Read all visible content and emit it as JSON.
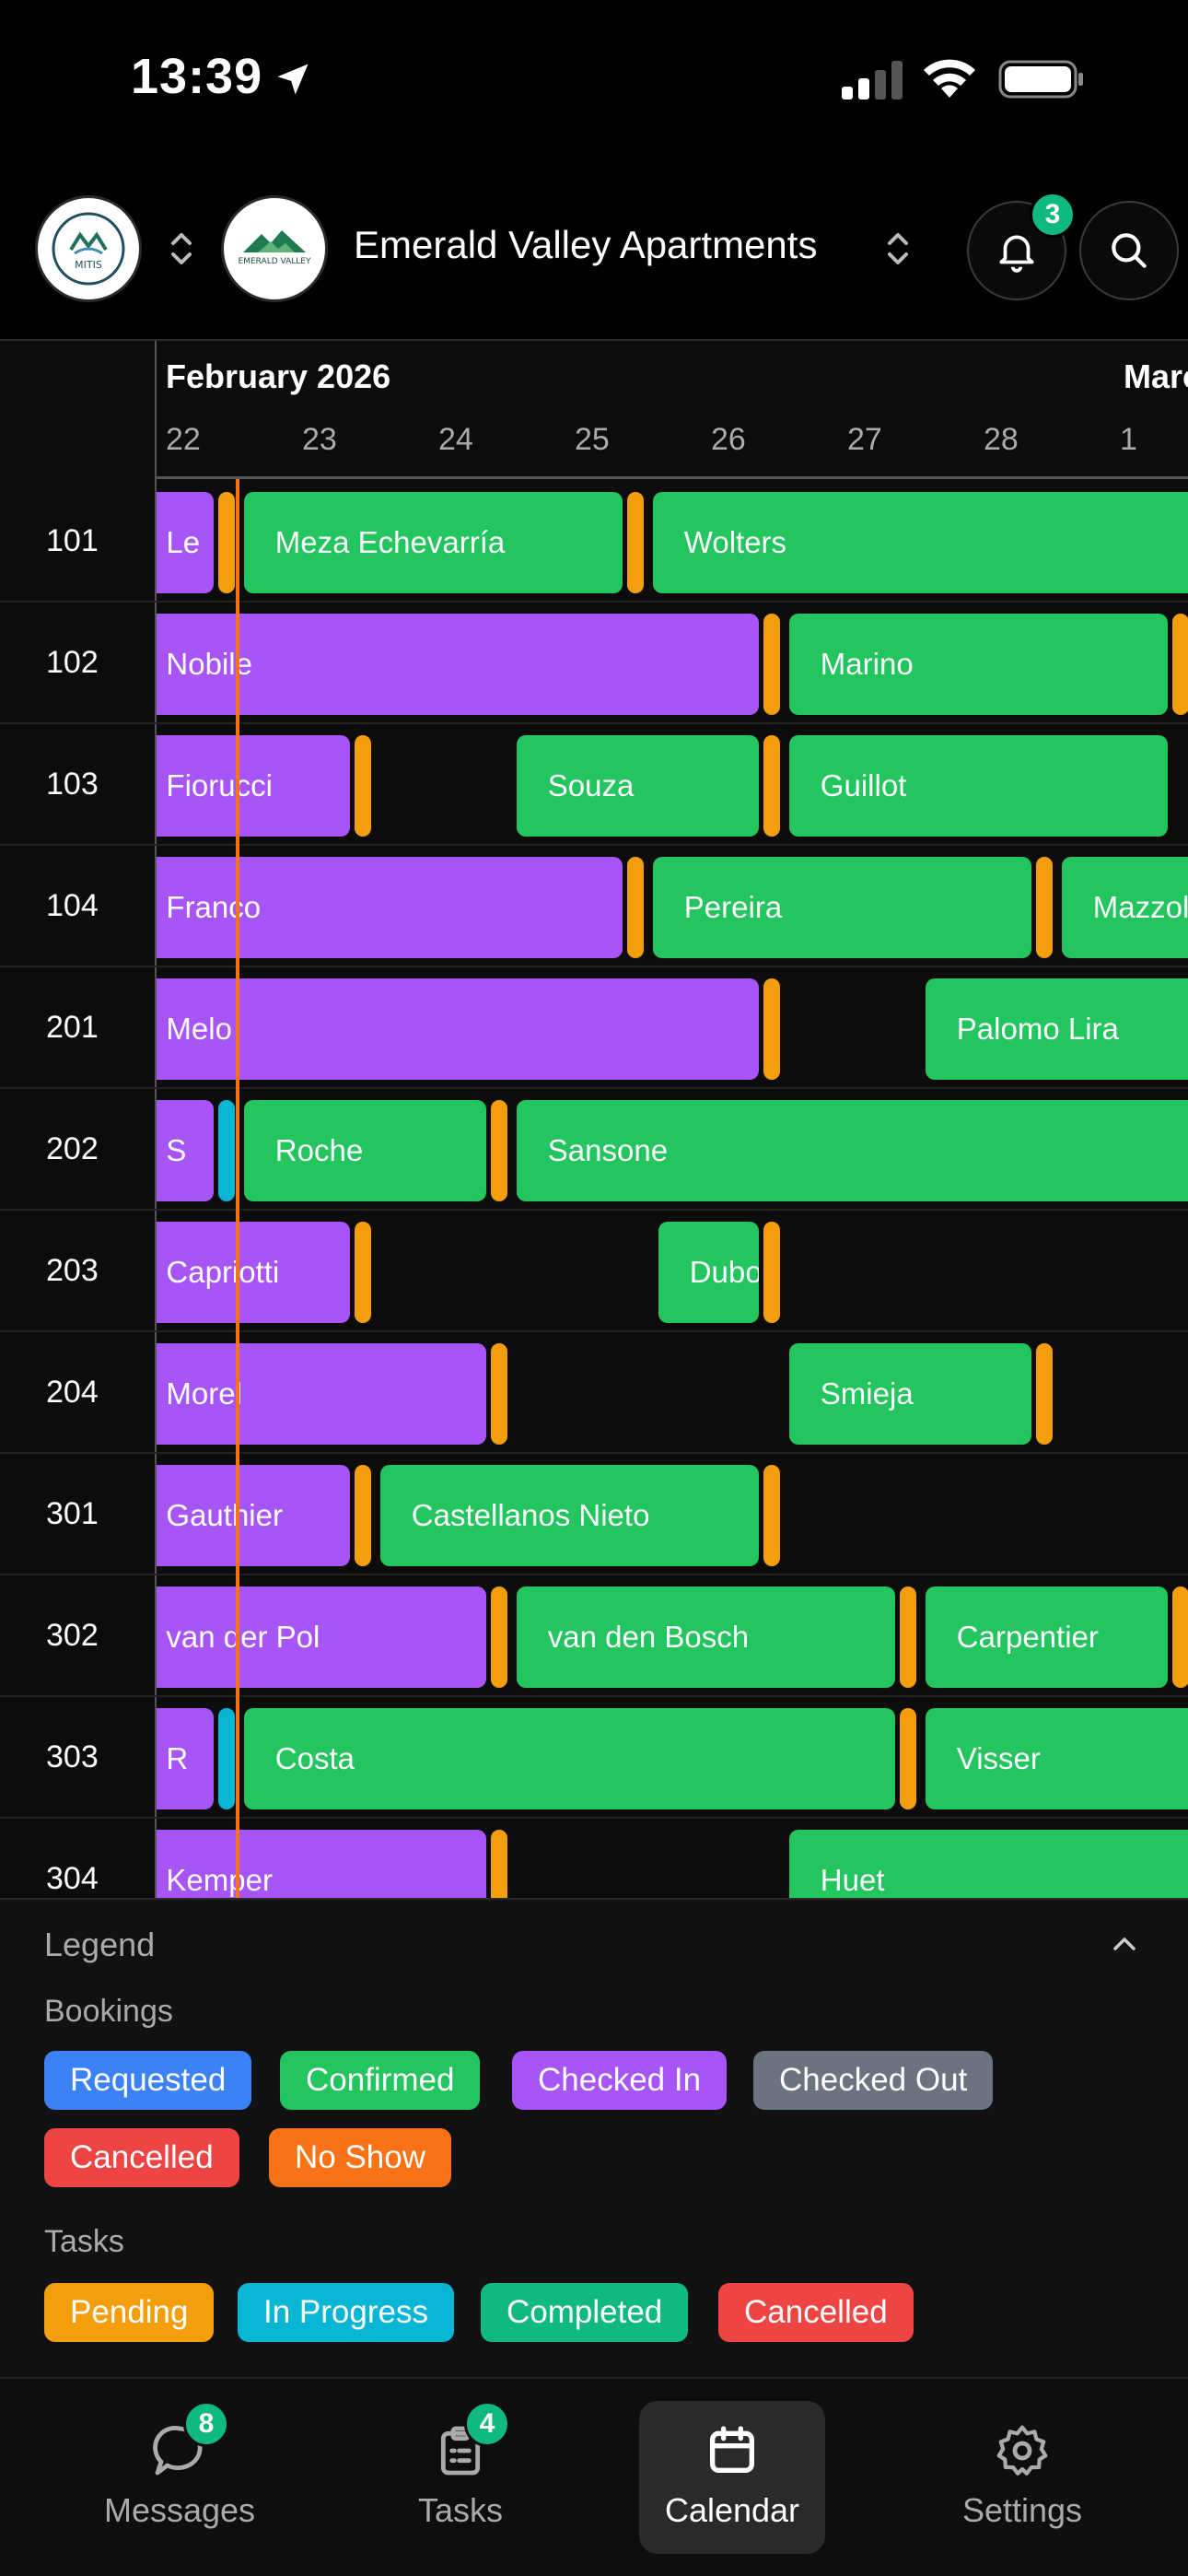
{
  "status_bar": {
    "time": "13:39"
  },
  "header": {
    "org_logo_text": "MITIS",
    "property_logo_text": "EMERALD VALLEY",
    "property_name": "Emerald Valley Apartments",
    "notification_count": "3"
  },
  "calendar": {
    "month_current": "February 2026",
    "month_next": "Marc",
    "days": [
      "22",
      "23",
      "24",
      "25",
      "26",
      "27",
      "28",
      "1"
    ],
    "rows": [
      {
        "room": "101",
        "bars": [
          {
            "name": "Le",
            "color": "purple",
            "start": -0.2,
            "end": 0.38
          },
          {
            "name": "Meza Echevarría",
            "color": "green",
            "start": 0.6,
            "end": 3.38
          },
          {
            "name": "Wolters",
            "color": "green",
            "start": 3.6,
            "end": 8.0
          }
        ],
        "tasks": [
          {
            "color": "orange",
            "at": 0.4
          },
          {
            "color": "orange",
            "at": 3.4
          }
        ]
      },
      {
        "room": "102",
        "bars": [
          {
            "name": "Nobile",
            "color": "purple",
            "start": -0.2,
            "end": 4.38
          },
          {
            "name": "Marino",
            "color": "green",
            "start": 4.6,
            "end": 7.38
          }
        ],
        "tasks": [
          {
            "color": "orange",
            "at": 4.4
          },
          {
            "color": "orange",
            "at": 7.4
          }
        ]
      },
      {
        "room": "103",
        "bars": [
          {
            "name": "Fiorucci",
            "color": "purple",
            "start": -0.2,
            "end": 1.38
          },
          {
            "name": "Souza",
            "color": "green",
            "start": 2.6,
            "end": 4.38
          },
          {
            "name": "Guillot",
            "color": "green",
            "start": 4.6,
            "end": 7.38
          }
        ],
        "tasks": [
          {
            "color": "orange",
            "at": 1.4
          },
          {
            "color": "orange",
            "at": 4.4
          }
        ]
      },
      {
        "room": "104",
        "bars": [
          {
            "name": "Franco",
            "color": "purple",
            "start": -0.2,
            "end": 3.38
          },
          {
            "name": "Pereira",
            "color": "green",
            "start": 3.6,
            "end": 6.38
          },
          {
            "name": "Mazzola",
            "color": "green",
            "start": 6.6,
            "end": 8.0
          }
        ],
        "tasks": [
          {
            "color": "orange",
            "at": 3.4
          },
          {
            "color": "orange",
            "at": 6.4
          }
        ]
      },
      {
        "room": "201",
        "bars": [
          {
            "name": "Melo",
            "color": "purple",
            "start": -0.2,
            "end": 4.38
          },
          {
            "name": "Palomo Lira",
            "color": "green",
            "start": 5.6,
            "end": 8.0
          }
        ],
        "tasks": [
          {
            "color": "orange",
            "at": 4.4
          }
        ]
      },
      {
        "room": "202",
        "bars": [
          {
            "name": "S",
            "color": "purple",
            "start": -0.2,
            "end": 0.38
          },
          {
            "name": "Roche",
            "color": "green",
            "start": 0.6,
            "end": 2.38
          },
          {
            "name": "Sansone",
            "color": "green",
            "start": 2.6,
            "end": 8.0
          }
        ],
        "tasks": [
          {
            "color": "cyan",
            "at": 0.4
          },
          {
            "color": "orange",
            "at": 2.4
          }
        ]
      },
      {
        "room": "203",
        "bars": [
          {
            "name": "Capriotti",
            "color": "purple",
            "start": -0.2,
            "end": 1.38
          },
          {
            "name": "Dubois",
            "color": "green",
            "start": 3.64,
            "end": 4.38
          }
        ],
        "tasks": [
          {
            "color": "orange",
            "at": 1.4
          },
          {
            "color": "orange",
            "at": 4.4
          }
        ]
      },
      {
        "room": "204",
        "bars": [
          {
            "name": "Morel",
            "color": "purple",
            "start": -0.2,
            "end": 2.38
          },
          {
            "name": "Smieja",
            "color": "green",
            "start": 4.6,
            "end": 6.38
          }
        ],
        "tasks": [
          {
            "color": "orange",
            "at": 2.4
          },
          {
            "color": "orange",
            "at": 6.4
          }
        ]
      },
      {
        "room": "301",
        "bars": [
          {
            "name": "Gauthier",
            "color": "purple",
            "start": -0.2,
            "end": 1.38
          },
          {
            "name": "Castellanos Nieto",
            "color": "green",
            "start": 1.6,
            "end": 4.38
          }
        ],
        "tasks": [
          {
            "color": "orange",
            "at": 1.4
          },
          {
            "color": "orange",
            "at": 4.4
          }
        ]
      },
      {
        "room": "302",
        "bars": [
          {
            "name": "van der Pol",
            "color": "purple",
            "start": -0.2,
            "end": 2.38
          },
          {
            "name": "van den Bosch",
            "color": "green",
            "start": 2.6,
            "end": 5.38
          },
          {
            "name": "Carpentier",
            "color": "green",
            "start": 5.6,
            "end": 7.38
          }
        ],
        "tasks": [
          {
            "color": "orange",
            "at": 2.4
          },
          {
            "color": "orange",
            "at": 5.4
          },
          {
            "color": "orange",
            "at": 7.4
          }
        ]
      },
      {
        "room": "303",
        "bars": [
          {
            "name": "R",
            "color": "purple",
            "start": -0.2,
            "end": 0.38
          },
          {
            "name": "Costa",
            "color": "green",
            "start": 0.6,
            "end": 5.38
          },
          {
            "name": "Visser",
            "color": "green",
            "start": 5.6,
            "end": 8.0
          }
        ],
        "tasks": [
          {
            "color": "cyan",
            "at": 0.4
          },
          {
            "color": "orange",
            "at": 5.4
          }
        ]
      },
      {
        "room": "304",
        "bars": [
          {
            "name": "Kemper",
            "color": "purple",
            "start": -0.2,
            "end": 2.38
          },
          {
            "name": "Huet",
            "color": "green",
            "start": 4.6,
            "end": 8.0
          }
        ],
        "tasks": [
          {
            "color": "orange",
            "at": 2.4
          }
        ]
      }
    ]
  },
  "legend": {
    "title": "Legend",
    "bookings_label": "Bookings",
    "bookings": [
      {
        "label": "Requested",
        "color": "#3b82f6"
      },
      {
        "label": "Confirmed",
        "color": "#22c55e"
      },
      {
        "label": "Checked In",
        "color": "#a855f7"
      },
      {
        "label": "Checked Out",
        "color": "#6b7280"
      },
      {
        "label": "Cancelled",
        "color": "#ef4444"
      },
      {
        "label": "No Show",
        "color": "#f97316"
      }
    ],
    "tasks_label": "Tasks",
    "tasks": [
      {
        "label": "Pending",
        "color": "#f59e0b"
      },
      {
        "label": "In Progress",
        "color": "#06b6d4"
      },
      {
        "label": "Completed",
        "color": "#10b981"
      },
      {
        "label": "Cancelled",
        "color": "#ef4444"
      }
    ]
  },
  "tabbar": {
    "tabs": [
      {
        "label": "Messages",
        "icon": "chat-bubble-icon",
        "badge": "8"
      },
      {
        "label": "Tasks",
        "icon": "clipboard-icon",
        "badge": "4"
      },
      {
        "label": "Calendar",
        "icon": "calendar-icon",
        "badge": ""
      },
      {
        "label": "Settings",
        "icon": "gear-icon",
        "badge": ""
      }
    ],
    "active": "Calendar"
  }
}
